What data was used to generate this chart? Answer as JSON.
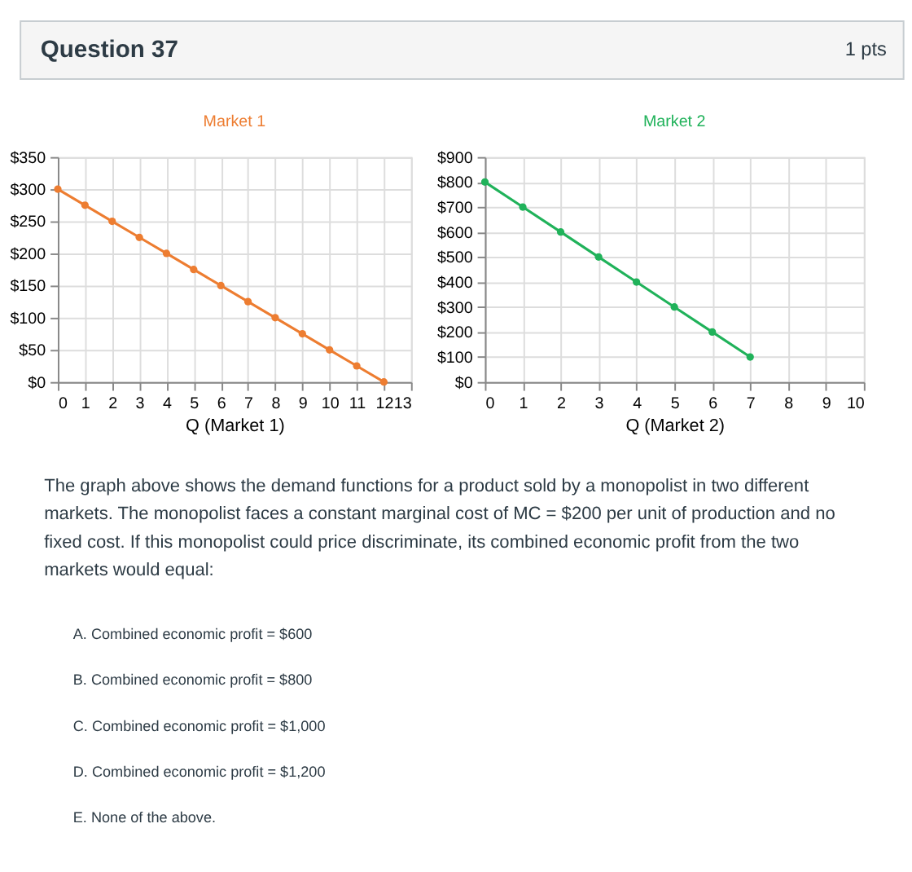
{
  "chart_data": [
    {
      "type": "other",
      "title": "Question 37",
      "annotations": [
        "1 pts"
      ]
    },
    {
      "type": "line",
      "title": "Market 1",
      "xlabel": "Q (Market 1)",
      "x": [
        0,
        1,
        2,
        3,
        4,
        5,
        6,
        7,
        8,
        9,
        10,
        11,
        12
      ],
      "series": [
        {
          "color": "#ed7d31",
          "values": [
            300,
            275,
            250,
            225,
            200,
            175,
            150,
            125,
            100,
            75,
            50,
            25,
            0
          ]
        }
      ],
      "xlim": [
        0,
        13
      ],
      "xticks": [
        0,
        1,
        2,
        3,
        4,
        5,
        6,
        7,
        8,
        9,
        10,
        11,
        12,
        13
      ],
      "ylim": [
        0,
        350
      ],
      "yticks": [
        {
          "value": 0,
          "label": "$0"
        },
        {
          "value": 50,
          "label": "$50"
        },
        {
          "value": 100,
          "label": "$100"
        },
        {
          "value": 150,
          "label": "$150"
        },
        {
          "value": 200,
          "label": "$200"
        },
        {
          "value": 250,
          "label": "$250"
        },
        {
          "value": 300,
          "label": "$300"
        },
        {
          "value": 350,
          "label": "$350"
        }
      ],
      "grid": true,
      "marker": "circle",
      "line_style": "solid"
    },
    {
      "type": "line",
      "title": "Market 2",
      "xlabel": "Q (Market 2)",
      "x": [
        0,
        1,
        2,
        3,
        4,
        5,
        6,
        7
      ],
      "series": [
        {
          "color": "#20b25a",
          "values": [
            800,
            700,
            600,
            500,
            400,
            300,
            200,
            100
          ]
        }
      ],
      "xlim": [
        0,
        10
      ],
      "xticks": [
        0,
        1,
        2,
        3,
        4,
        5,
        6,
        7,
        8,
        9,
        10
      ],
      "ylim": [
        0,
        900
      ],
      "yticks": [
        {
          "value": 0,
          "label": "$0"
        },
        {
          "value": 100,
          "label": "$100"
        },
        {
          "value": 200,
          "label": "$200"
        },
        {
          "value": 300,
          "label": "$300"
        },
        {
          "value": 400,
          "label": "$400"
        },
        {
          "value": 500,
          "label": "$500"
        },
        {
          "value": 600,
          "label": "$600"
        },
        {
          "value": 700,
          "label": "$700"
        },
        {
          "value": 800,
          "label": "$800"
        },
        {
          "value": 900,
          "label": "$900"
        }
      ],
      "grid": true,
      "marker": "circle",
      "line_style": "solid"
    },
    {
      "type": "other",
      "annotations": [
        "The graph above shows the demand functions for a product sold by a monopolist in two different markets. The monopolist faces a constant marginal cost of MC = $200 per unit of production and no fixed cost. If this monopolist could price discriminate, its combined economic profit from the two markets would equal:",
        "A. Combined economic profit = $600",
        "B. Combined economic profit = $800",
        "C. Combined economic profit = $1,000",
        "D. Combined economic profit = $1,200",
        "E. None of the above."
      ]
    }
  ]
}
